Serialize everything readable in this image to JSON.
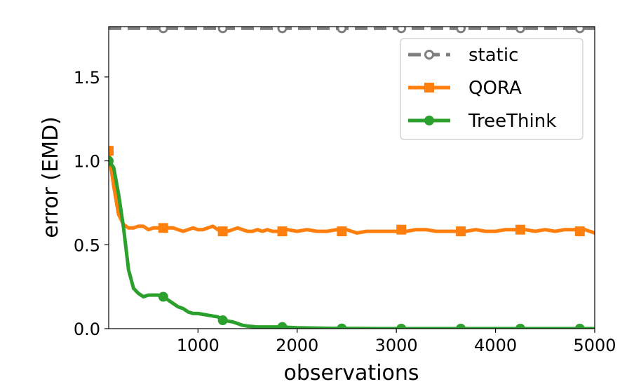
{
  "chart_data": {
    "type": "line",
    "title": "",
    "xlabel": "observations",
    "ylabel": "error (EMD)",
    "xlim": [
      100,
      5000
    ],
    "ylim": [
      0.0,
      1.8
    ],
    "xticks": [
      1000,
      2000,
      3000,
      4000,
      5000
    ],
    "xtick_labels": [
      "1000",
      "2000",
      "3000",
      "4000",
      "5000"
    ],
    "yticks": [
      0.0,
      0.5,
      1.0,
      1.5
    ],
    "ytick_labels": [
      "0.0",
      "0.5",
      "1.0",
      "1.5"
    ],
    "grid": false,
    "legend_position": "top-right",
    "series": [
      {
        "name": "static",
        "color": "#7f7f7f",
        "line_style": "dashed",
        "marker": "hollow-circle",
        "x": [
          100,
          650,
          1250,
          1850,
          2450,
          3050,
          3650,
          4250,
          4850,
          5000
        ],
        "y": [
          1.79,
          1.79,
          1.79,
          1.79,
          1.79,
          1.79,
          1.79,
          1.79,
          1.79,
          1.79
        ],
        "marker_x": [
          650,
          1250,
          1850,
          2450,
          3050,
          3650,
          4250,
          4850
        ]
      },
      {
        "name": "QORA",
        "color": "#ff7f0e",
        "line_style": "solid",
        "marker": "square",
        "x": [
          100,
          150,
          200,
          250,
          300,
          350,
          400,
          450,
          500,
          550,
          600,
          650,
          700,
          750,
          800,
          850,
          900,
          950,
          1000,
          1050,
          1100,
          1150,
          1200,
          1250,
          1300,
          1350,
          1400,
          1450,
          1500,
          1550,
          1600,
          1650,
          1700,
          1750,
          1800,
          1850,
          1900,
          2000,
          2100,
          2200,
          2300,
          2400,
          2450,
          2500,
          2600,
          2700,
          2800,
          2900,
          3000,
          3050,
          3100,
          3200,
          3300,
          3400,
          3500,
          3600,
          3650,
          3700,
          3800,
          3900,
          4000,
          4100,
          4200,
          4250,
          4300,
          4400,
          4500,
          4600,
          4700,
          4800,
          4850,
          4900,
          5000
        ],
        "y": [
          1.06,
          0.85,
          0.68,
          0.62,
          0.6,
          0.6,
          0.61,
          0.61,
          0.59,
          0.6,
          0.6,
          0.6,
          0.6,
          0.6,
          0.59,
          0.58,
          0.59,
          0.6,
          0.59,
          0.59,
          0.6,
          0.61,
          0.59,
          0.58,
          0.58,
          0.59,
          0.6,
          0.59,
          0.58,
          0.58,
          0.59,
          0.58,
          0.59,
          0.58,
          0.58,
          0.58,
          0.59,
          0.58,
          0.59,
          0.58,
          0.58,
          0.59,
          0.58,
          0.59,
          0.57,
          0.58,
          0.58,
          0.58,
          0.58,
          0.59,
          0.58,
          0.59,
          0.59,
          0.58,
          0.58,
          0.58,
          0.58,
          0.58,
          0.59,
          0.58,
          0.58,
          0.59,
          0.59,
          0.59,
          0.59,
          0.58,
          0.59,
          0.58,
          0.59,
          0.59,
          0.58,
          0.59,
          0.57
        ],
        "marker_x": [
          100,
          650,
          1250,
          1850,
          2450,
          3050,
          3650,
          4250,
          4850
        ],
        "marker_y": [
          1.06,
          0.6,
          0.58,
          0.58,
          0.58,
          0.59,
          0.58,
          0.59,
          0.58
        ]
      },
      {
        "name": "TreeThink",
        "color": "#2ca02c",
        "line_style": "solid",
        "marker": "circle",
        "x": [
          100,
          150,
          200,
          250,
          300,
          350,
          400,
          450,
          500,
          550,
          600,
          650,
          700,
          750,
          800,
          850,
          900,
          950,
          1000,
          1100,
          1200,
          1250,
          1300,
          1350,
          1400,
          1450,
          1500,
          1600,
          1700,
          1800,
          1850,
          1900,
          2000,
          2100,
          2200,
          2300,
          2450,
          2600,
          2800,
          3050,
          3300,
          3650,
          4000,
          4250,
          4500,
          4850,
          5000
        ],
        "y": [
          1.0,
          0.96,
          0.8,
          0.6,
          0.35,
          0.24,
          0.21,
          0.19,
          0.2,
          0.2,
          0.2,
          0.19,
          0.17,
          0.15,
          0.13,
          0.12,
          0.1,
          0.09,
          0.09,
          0.08,
          0.07,
          0.05,
          0.045,
          0.04,
          0.03,
          0.02,
          0.015,
          0.01,
          0.01,
          0.01,
          0.01,
          0.008,
          0.005,
          0.004,
          0.003,
          0.002,
          0.001,
          0.001,
          0.0,
          0.0,
          0.0,
          0.0,
          0.0,
          0.0,
          0.0,
          0.0,
          0.0
        ],
        "marker_x": [
          100,
          650,
          1250,
          1850,
          2450,
          3050,
          3650,
          4250,
          4850
        ],
        "marker_y": [
          1.0,
          0.19,
          0.05,
          0.01,
          0.001,
          0.0,
          0.0,
          0.0,
          0.0
        ]
      }
    ]
  }
}
